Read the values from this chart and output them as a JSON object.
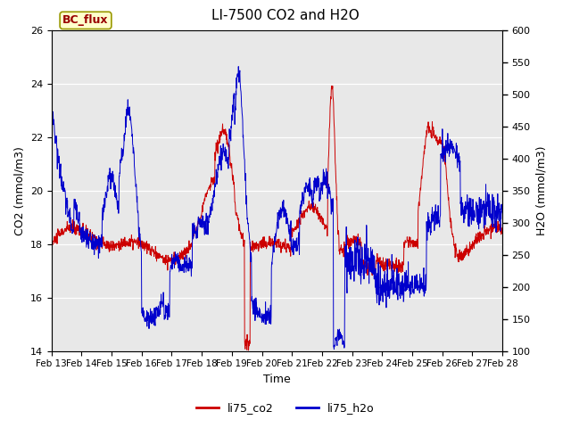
{
  "title": "LI-7500 CO2 and H2O",
  "xlabel": "Time",
  "ylabel_left": "CO2 (mmol/m3)",
  "ylabel_right": "H2O (mmol/m3)",
  "ylim_left": [
    14,
    26
  ],
  "ylim_right": [
    100,
    600
  ],
  "yticks_left": [
    14,
    16,
    18,
    20,
    22,
    24,
    26
  ],
  "yticks_right": [
    100,
    150,
    200,
    250,
    300,
    350,
    400,
    450,
    500,
    550,
    600
  ],
  "xtick_labels": [
    "Feb 13",
    "Feb 14",
    "Feb 15",
    "Feb 16",
    "Feb 17",
    "Feb 18",
    "Feb 19",
    "Feb 20",
    "Feb 21",
    "Feb 22",
    "Feb 23",
    "Feb 24",
    "Feb 25",
    "Feb 26",
    "Feb 27",
    "Feb 28"
  ],
  "co2_color": "#cc0000",
  "h2o_color": "#0000cc",
  "outer_bg": "#ffffff",
  "plot_bg_color": "#e8e8e8",
  "annotation_text": "BC_flux",
  "annotation_color": "#990000",
  "annotation_bg": "#ffffcc",
  "annotation_edge": "#999900",
  "legend_co2": "li75_co2",
  "legend_h2o": "li75_h2o",
  "title_fontsize": 11,
  "axis_fontsize": 9,
  "tick_fontsize": 8,
  "legend_fontsize": 9
}
